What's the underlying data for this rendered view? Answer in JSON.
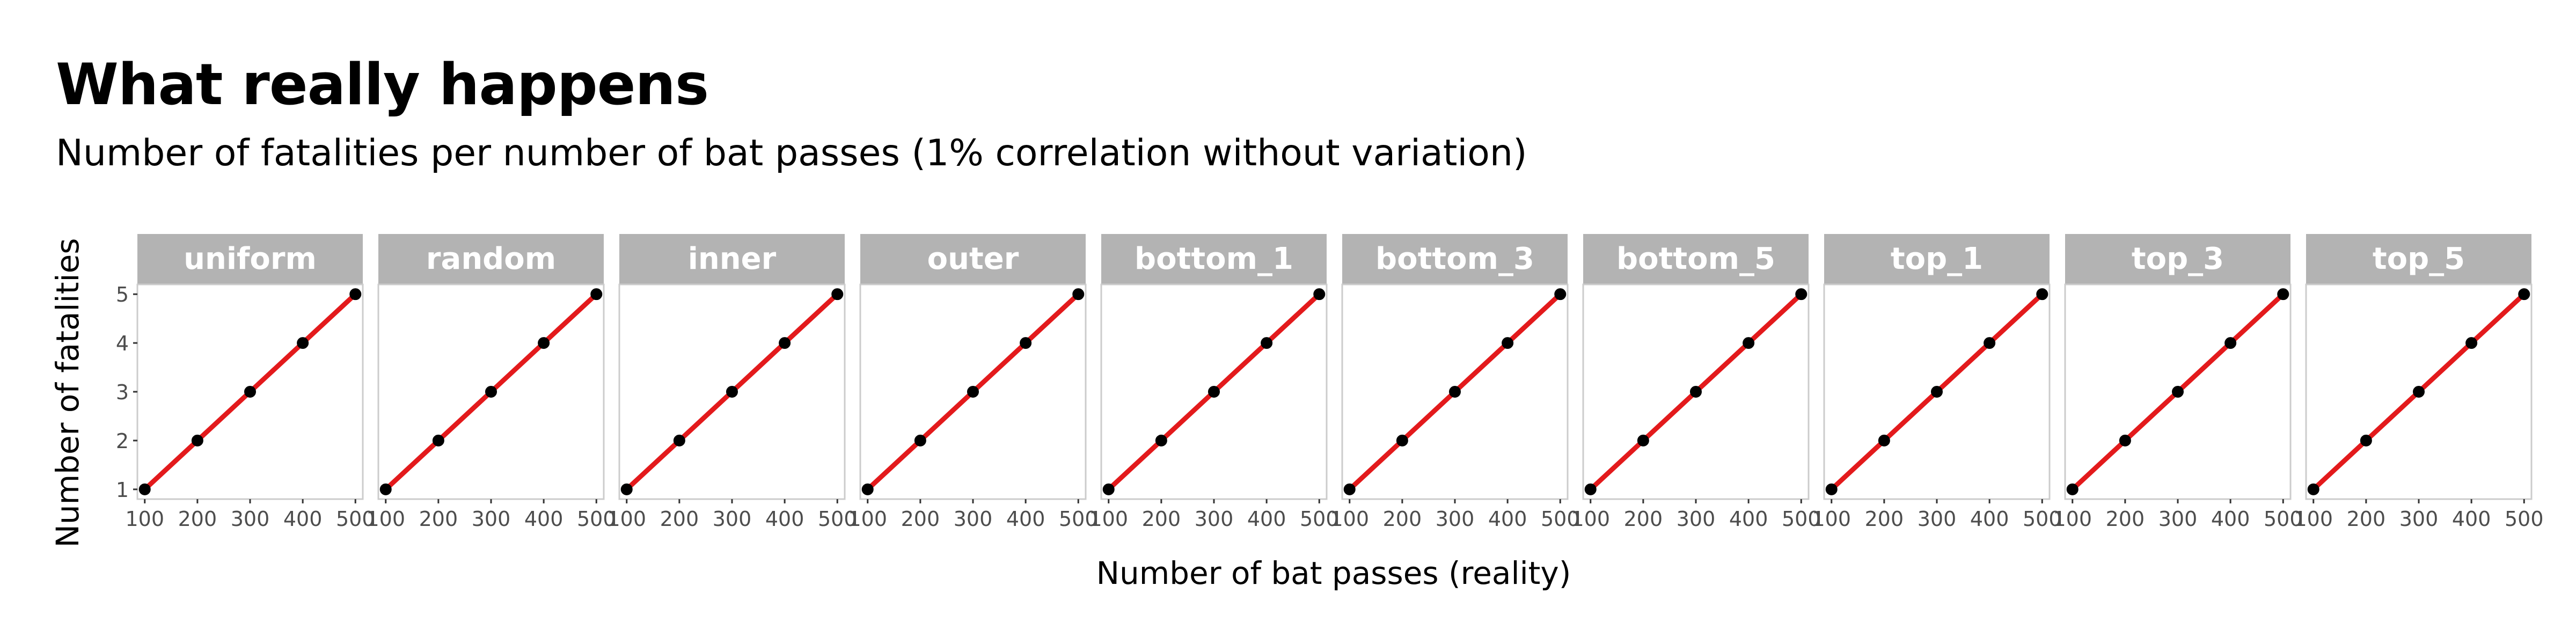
{
  "header": {
    "title": "What really happens",
    "subtitle": "Number of fatalities per number of bat passes (1% correlation without variation)"
  },
  "colors": {
    "strip_background": "#b3b3b3",
    "strip_text": "#ffffff",
    "panel_border": "#cccccc",
    "line": "#e31a1c",
    "point": "#000000"
  },
  "chart_data": {
    "type": "line",
    "facets": [
      "uniform",
      "random",
      "inner",
      "outer",
      "bottom_1",
      "bottom_3",
      "bottom_5",
      "top_1",
      "top_3",
      "top_5"
    ],
    "x": [
      100,
      200,
      300,
      400,
      500
    ],
    "y": [
      1,
      2,
      3,
      4,
      5
    ],
    "xlabel": "Number of bat passes (reality)",
    "ylabel": "Number of fatalities",
    "xticks": [
      100,
      200,
      300,
      400,
      500
    ],
    "yticks": [
      1,
      2,
      3,
      4,
      5
    ],
    "xlim": [
      86,
      514
    ],
    "ylim": [
      0.8,
      5.2
    ],
    "grid": false,
    "legend": "none"
  }
}
